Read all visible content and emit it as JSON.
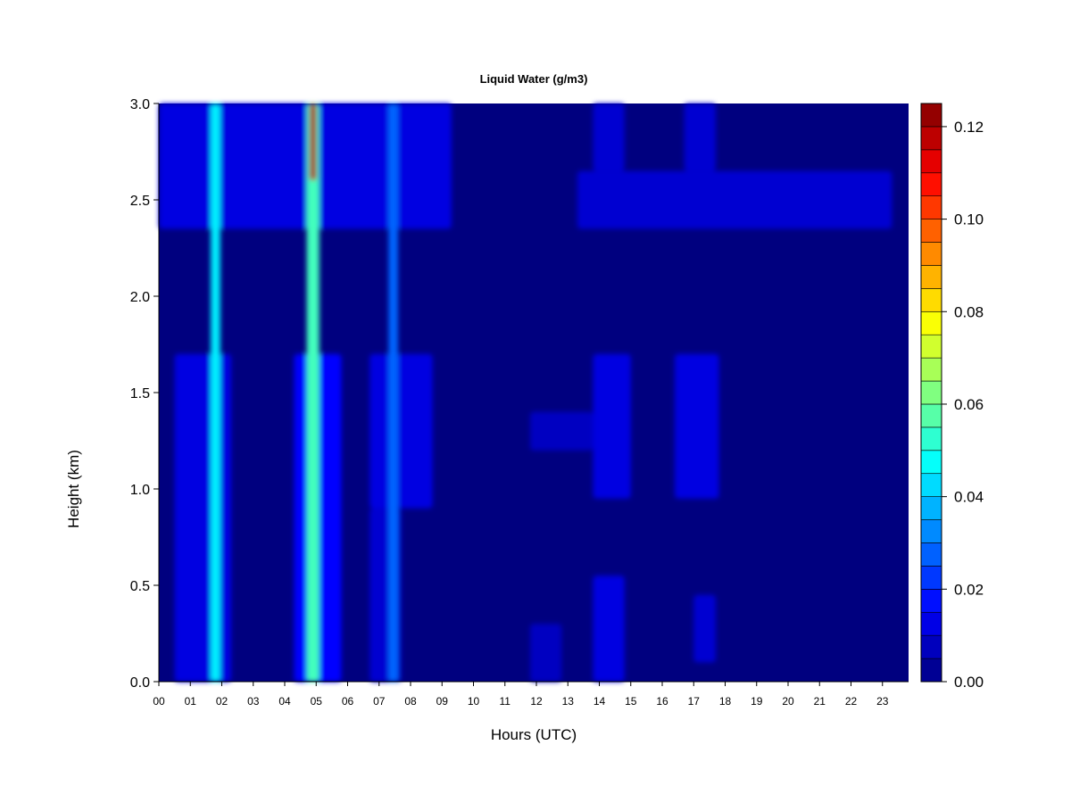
{
  "chart_data": {
    "type": "heatmap",
    "title": "Liquid Water (g/m3)",
    "xlabel": "Hours (UTC)",
    "ylabel": "Height (km)",
    "x_ticks": [
      "00",
      "01",
      "02",
      "03",
      "04",
      "05",
      "06",
      "07",
      "08",
      "09",
      "10",
      "11",
      "12",
      "13",
      "14",
      "15",
      "16",
      "17",
      "18",
      "19",
      "20",
      "21",
      "22",
      "23"
    ],
    "xlim": [
      0,
      23.8
    ],
    "ylim": [
      0,
      3.0
    ],
    "y_ticks": [
      "0.0",
      "0.5",
      "1.0",
      "1.5",
      "2.0",
      "2.5",
      "3.0"
    ],
    "y_tick_values": [
      0,
      0.5,
      1.0,
      1.5,
      2.0,
      2.5,
      3.0
    ],
    "colorbar": {
      "range": [
        0,
        0.125
      ],
      "tick_labels": [
        "0.00",
        "0.02",
        "0.04",
        "0.06",
        "0.08",
        "0.10",
        "0.12"
      ],
      "tick_values": [
        0,
        0.02,
        0.04,
        0.06,
        0.08,
        0.1,
        0.12
      ],
      "levels": 25,
      "colormap": "jet"
    },
    "features": [
      {
        "x": [
          0.0,
          9.3
        ],
        "y": [
          2.35,
          3.0
        ],
        "value": 0.012
      },
      {
        "x": [
          13.3,
          23.3
        ],
        "y": [
          2.35,
          2.65
        ],
        "value": 0.01
      },
      {
        "x": [
          13.8,
          14.8
        ],
        "y": [
          2.65,
          3.0
        ],
        "value": 0.01
      },
      {
        "x": [
          16.7,
          17.7
        ],
        "y": [
          2.65,
          3.0
        ],
        "value": 0.01
      },
      {
        "x": [
          0.5,
          2.3
        ],
        "y": [
          0.0,
          1.7
        ],
        "value": 0.012
      },
      {
        "x": [
          4.3,
          5.8
        ],
        "y": [
          0.0,
          1.7
        ],
        "value": 0.016
      },
      {
        "x": [
          6.7,
          8.7
        ],
        "y": [
          0.9,
          1.7
        ],
        "value": 0.012
      },
      {
        "x": [
          6.7,
          7.7
        ],
        "y": [
          0.0,
          0.9
        ],
        "value": 0.01
      },
      {
        "x": [
          13.8,
          15.0
        ],
        "y": [
          0.95,
          1.7
        ],
        "value": 0.012
      },
      {
        "x": [
          16.4,
          17.8
        ],
        "y": [
          0.95,
          1.7
        ],
        "value": 0.012
      },
      {
        "x": [
          11.8,
          13.8
        ],
        "y": [
          1.2,
          1.4
        ],
        "value": 0.008
      },
      {
        "x": [
          13.8,
          14.8
        ],
        "y": [
          0.0,
          0.55
        ],
        "value": 0.012
      },
      {
        "x": [
          17.0,
          17.7
        ],
        "y": [
          0.1,
          0.45
        ],
        "value": 0.01
      },
      {
        "x": [
          11.8,
          12.8
        ],
        "y": [
          0.0,
          0.3
        ],
        "value": 0.008
      },
      {
        "x": [
          1.65,
          1.95
        ],
        "y": [
          0.0,
          3.0
        ],
        "value": 0.045
      },
      {
        "x": [
          4.7,
          5.1
        ],
        "y": [
          0.0,
          3.0
        ],
        "value": 0.055
      },
      {
        "x": [
          4.8,
          5.0
        ],
        "y": [
          2.6,
          3.0
        ],
        "value": 0.12
      },
      {
        "x": [
          7.3,
          7.6
        ],
        "y": [
          0.0,
          3.0
        ],
        "value": 0.028
      }
    ]
  }
}
